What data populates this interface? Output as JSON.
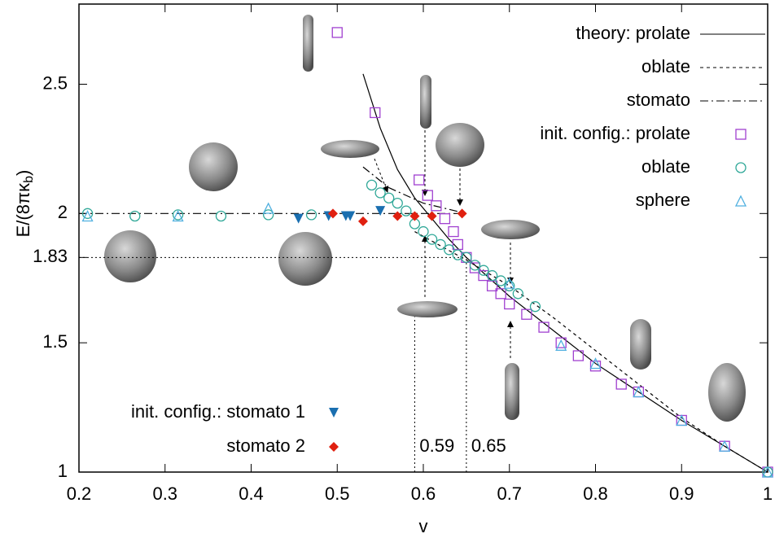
{
  "chart_data": {
    "type": "scatter",
    "xlabel": "v",
    "ylabel_parts": [
      "E/(8πκ",
      "b",
      ")"
    ],
    "xlim": [
      0.2,
      1
    ],
    "ylim": [
      1,
      2.81
    ],
    "xticks": [
      0.2,
      0.3,
      0.4,
      0.5,
      0.6,
      0.7,
      0.8,
      0.9,
      1
    ],
    "yticks": [
      1,
      1.5,
      1.83,
      2,
      2.5
    ],
    "grid": false,
    "legend": [
      "upper right",
      "lower left"
    ],
    "series": [
      {
        "type": "line",
        "legend_prefix": "theory:",
        "name": "prolate",
        "color": "#000000",
        "style": "solid",
        "legend": 0,
        "x": [
          0.53,
          0.55,
          0.57,
          0.59,
          0.61,
          0.63,
          0.65,
          0.7,
          0.75,
          0.8,
          0.85,
          0.9,
          0.95,
          1
        ],
        "values": [
          2.54,
          2.33,
          2.17,
          2.06,
          1.98,
          1.9,
          1.83,
          1.68,
          1.55,
          1.42,
          1.31,
          1.2,
          1.1,
          1
        ]
      },
      {
        "type": "line",
        "name": "oblate",
        "color": "#000000",
        "style": "dashed",
        "legend": 0,
        "x": [
          0.59,
          0.65,
          0.7,
          0.75,
          0.8,
          0.85,
          0.9,
          0.95,
          1
        ],
        "values": [
          1.93,
          1.82,
          1.72,
          1.6,
          1.47,
          1.34,
          1.21,
          1.1,
          1
        ]
      },
      {
        "type": "line",
        "name": "stomato",
        "color": "#000000",
        "style": "dashdot",
        "legend": 0,
        "x": [
          0.2,
          0.65,
          0.65,
          0.53,
          0.56,
          0.6,
          0.65
        ],
        "values": [
          2,
          2,
          null,
          2.18,
          2.1,
          2.04,
          2
        ]
      },
      {
        "type": "scatter",
        "legend_prefix": "init. config.:",
        "name": "prolate",
        "color": "#a040d0",
        "marker": "square",
        "legend": 0,
        "x": [
          0.5,
          0.544,
          0.595,
          0.605,
          0.615,
          0.625,
          0.635,
          0.64,
          0.65,
          0.66,
          0.67,
          0.68,
          0.69,
          0.7,
          0.72,
          0.74,
          0.76,
          0.78,
          0.8,
          0.83,
          0.85,
          0.9,
          0.95,
          1
        ],
        "values": [
          2.7,
          2.39,
          2.13,
          2.07,
          2.03,
          1.98,
          1.93,
          1.88,
          1.83,
          1.79,
          1.76,
          1.72,
          1.69,
          1.65,
          1.61,
          1.56,
          1.5,
          1.45,
          1.41,
          1.34,
          1.31,
          1.2,
          1.1,
          1
        ]
      },
      {
        "type": "scatter",
        "name": "oblate",
        "color": "#30a898",
        "marker": "circle",
        "legend": 0,
        "x": [
          0.21,
          0.265,
          0.315,
          0.365,
          0.42,
          0.47,
          0.54,
          0.55,
          0.56,
          0.57,
          0.58,
          0.59,
          0.6,
          0.61,
          0.62,
          0.63,
          0.64,
          0.65,
          0.66,
          0.67,
          0.68,
          0.69,
          0.7,
          0.71,
          0.73,
          1
        ],
        "values": [
          2,
          1.99,
          1.995,
          1.99,
          1.995,
          1.995,
          2.11,
          2.08,
          2.06,
          2.04,
          2.01,
          1.96,
          1.93,
          1.9,
          1.88,
          1.86,
          1.84,
          1.83,
          1.8,
          1.78,
          1.76,
          1.74,
          1.72,
          1.69,
          1.64,
          1
        ]
      },
      {
        "type": "scatter",
        "name": "sphere",
        "color": "#50b0e0",
        "marker": "triangle",
        "legend": 0,
        "x": [
          0.21,
          0.315,
          0.42,
          0.7,
          0.76,
          0.8,
          0.85,
          0.9,
          0.95,
          1
        ],
        "values": [
          1.99,
          1.99,
          2.02,
          1.73,
          1.49,
          1.42,
          1.31,
          1.2,
          1.1,
          1
        ]
      },
      {
        "type": "scatter",
        "legend_prefix": "init. config.:",
        "name": "stomato 1",
        "color": "#1a6fb0",
        "marker": "triangle-down",
        "legend": 1,
        "x": [
          0.455,
          0.49,
          0.51,
          0.515,
          0.55
        ],
        "values": [
          1.98,
          1.99,
          1.99,
          1.99,
          2.01
        ]
      },
      {
        "type": "scatter",
        "name": "stomato 2",
        "color": "#e02010",
        "marker": "diamond",
        "legend": 1,
        "x": [
          0.495,
          0.53,
          0.57,
          0.59,
          0.61,
          0.645
        ],
        "values": [
          2,
          1.97,
          1.99,
          1.99,
          1.99,
          2
        ]
      }
    ],
    "reference_lines": [
      {
        "x": 0.59,
        "y": 1.6,
        "label": "0.59"
      },
      {
        "x": 0.65,
        "y": 1.83,
        "label": "0.65"
      }
    ]
  }
}
